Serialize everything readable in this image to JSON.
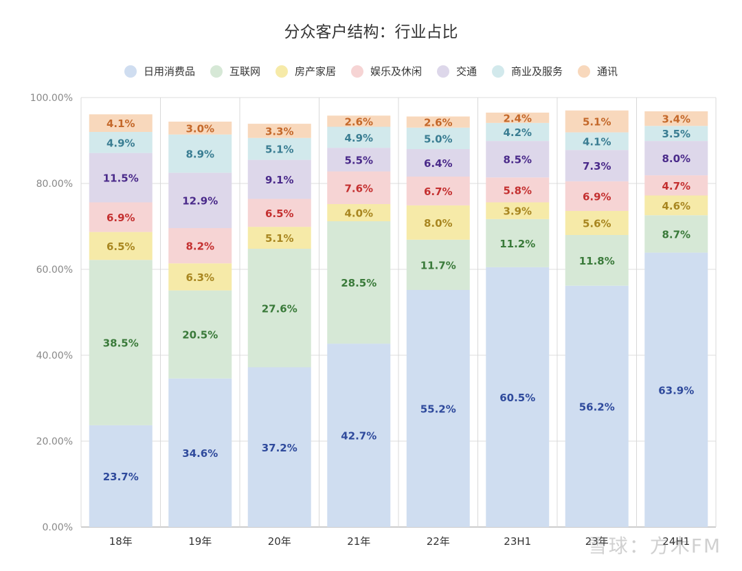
{
  "chart_data": {
    "type": "bar",
    "stacked": true,
    "title": "分众客户结构：行业占比",
    "categories": [
      "18年",
      "19年",
      "20年",
      "21年",
      "22年",
      "23H1",
      "23年",
      "24H1"
    ],
    "y_ticks": [
      "0.00%",
      "20.00%",
      "40.00%",
      "60.00%",
      "80.00%",
      "100.00%"
    ],
    "ylim": [
      0,
      100
    ],
    "grid": true,
    "legend_position": "top",
    "series": [
      {
        "name": "日用消费品",
        "fill": "#cfddf0",
        "label_color": "#2f4a9c",
        "values": [
          23.7,
          34.6,
          37.2,
          42.7,
          55.2,
          60.5,
          56.2,
          63.9
        ],
        "labels": [
          "23.7%",
          "34.6%",
          "37.2%",
          "42.7%",
          "55.2%",
          "60.5%",
          "56.2%",
          "63.9%"
        ]
      },
      {
        "name": "互联网",
        "fill": "#d6e8d6",
        "label_color": "#3a7a3a",
        "values": [
          38.5,
          20.5,
          27.6,
          28.5,
          11.7,
          11.2,
          11.8,
          8.7
        ],
        "labels": [
          "38.5%",
          "20.5%",
          "27.6%",
          "28.5%",
          "11.7%",
          "11.2%",
          "11.8%",
          "8.7%"
        ]
      },
      {
        "name": "房产家居",
        "fill": "#f6eaa8",
        "label_color": "#a88620",
        "values": [
          6.5,
          6.3,
          5.1,
          4.0,
          8.0,
          3.9,
          5.6,
          4.6
        ],
        "labels": [
          "6.5%",
          "6.3%",
          "5.1%",
          "4.0%",
          "8.0%",
          "3.9%",
          "5.6%",
          "4.6%"
        ]
      },
      {
        "name": "娱乐及休闲",
        "fill": "#f6d4d4",
        "label_color": "#c43030",
        "values": [
          6.9,
          8.2,
          6.5,
          7.6,
          6.7,
          5.8,
          6.9,
          4.7
        ],
        "labels": [
          "6.9%",
          "8.2%",
          "6.5%",
          "7.6%",
          "6.7%",
          "5.8%",
          "6.9%",
          "4.7%"
        ]
      },
      {
        "name": "交通",
        "fill": "#ddd7ea",
        "label_color": "#4a2a8a",
        "values": [
          11.5,
          12.9,
          9.1,
          5.5,
          6.4,
          8.5,
          7.3,
          8.0
        ],
        "labels": [
          "11.5%",
          "12.9%",
          "9.1%",
          "5.5%",
          "6.4%",
          "8.5%",
          "7.3%",
          "8.0%"
        ]
      },
      {
        "name": "商业及服务",
        "fill": "#d2e9ec",
        "label_color": "#3a7d92",
        "values": [
          4.9,
          8.9,
          5.1,
          4.9,
          5.0,
          4.2,
          4.1,
          3.5
        ],
        "labels": [
          "4.9%",
          "8.9%",
          "5.1%",
          "4.9%",
          "5.0%",
          "4.2%",
          "4.1%",
          "3.5%"
        ]
      },
      {
        "name": "通讯",
        "fill": "#f8d8bc",
        "label_color": "#c4682a",
        "values": [
          4.1,
          3.0,
          3.3,
          2.6,
          2.6,
          2.4,
          5.1,
          3.4
        ],
        "labels": [
          "4.1%",
          "3.0%",
          "3.3%",
          "2.6%",
          "2.6%",
          "2.4%",
          "5.1%",
          "3.4%"
        ]
      }
    ]
  },
  "watermark": "雪球：方木FM"
}
